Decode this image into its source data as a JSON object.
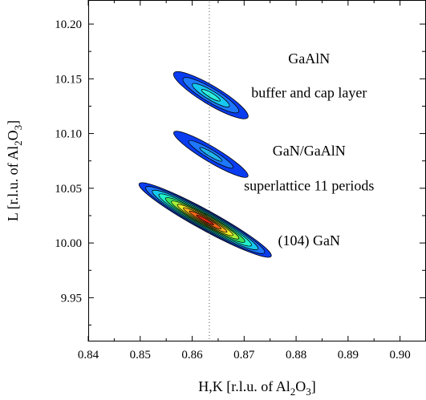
{
  "chart_data": {
    "type": "contour",
    "title": "",
    "xlabel": "H,K [r.l.u. of Al",
    "xlabel_sub1": "2",
    "xlabel_mid": "O",
    "xlabel_sub2": "3",
    "xlabel_end": "]",
    "ylabel": "L [r.l.u. of Al",
    "ylabel_sub1": "2",
    "ylabel_mid": "O",
    "ylabel_sub2": "3",
    "ylabel_end": "]",
    "xlim": [
      0.84,
      0.905
    ],
    "ylim": [
      9.91,
      10.222
    ],
    "xticks": [
      0.84,
      0.85,
      0.86,
      0.87,
      0.88,
      0.89,
      0.9
    ],
    "xtick_labels": [
      "0.84",
      "0.85",
      "0.86",
      "0.87",
      "0.88",
      "0.89",
      "0.90"
    ],
    "yticks": [
      9.95,
      10.0,
      10.05,
      10.1,
      10.15,
      10.2
    ],
    "ytick_labels": [
      "9.95",
      "10.00",
      "10.05",
      "10.10",
      "10.15",
      "10.20"
    ],
    "reference_line_x": 0.8633,
    "annotations": [
      {
        "text": "GaAlN",
        "x": 0.8825,
        "y": 10.164
      },
      {
        "text": "buffer and cap layer",
        "x": 0.8825,
        "y": 10.133
      },
      {
        "text": "GaN/GaAlN",
        "x": 0.8825,
        "y": 10.08
      },
      {
        "text": "superlattice 11 periods",
        "x": 0.8825,
        "y": 10.048
      },
      {
        "text": "(104) GaN",
        "x": 0.8825,
        "y": 9.998
      }
    ],
    "peaks": [
      {
        "name": "(104) GaN",
        "cx": 0.8625,
        "cy": 10.021,
        "a": 0.0145,
        "b": 0.009,
        "tilt": -0.55,
        "levels": [
          {
            "scale": 1.0,
            "color": "#0a3cf0"
          },
          {
            "scale": 0.9,
            "color": "#1e78ff"
          },
          {
            "scale": 0.8,
            "color": "#16c8f0"
          },
          {
            "scale": 0.7,
            "color": "#22f0c8"
          },
          {
            "scale": 0.6,
            "color": "#38e060"
          },
          {
            "scale": 0.51,
            "color": "#a8f03a"
          },
          {
            "scale": 0.42,
            "color": "#f0ec2a"
          },
          {
            "scale": 0.33,
            "color": "#f8b020"
          },
          {
            "scale": 0.24,
            "color": "#f86818"
          },
          {
            "scale": 0.13,
            "color": "#e82818"
          }
        ]
      },
      {
        "name": "GaN/GaAlN superlattice 11 periods",
        "cx": 0.8636,
        "cy": 10.081,
        "a": 0.0083,
        "b": 0.0069,
        "tilt": -0.6,
        "levels": [
          {
            "scale": 1.0,
            "color": "#0a3cf0"
          },
          {
            "scale": 0.6,
            "color": "#1e78ff"
          },
          {
            "scale": 0.3,
            "color": "#22b8f0"
          }
        ]
      },
      {
        "name": "GaAlN buffer and cap layer",
        "cx": 0.8636,
        "cy": 10.135,
        "a": 0.0083,
        "b": 0.0085,
        "tilt": -0.6,
        "levels": [
          {
            "scale": 1.0,
            "color": "#0a3cf0"
          },
          {
            "scale": 0.75,
            "color": "#1e78ff"
          },
          {
            "scale": 0.5,
            "color": "#16c8f0"
          },
          {
            "scale": 0.25,
            "color": "#30f0e0"
          }
        ]
      }
    ]
  }
}
